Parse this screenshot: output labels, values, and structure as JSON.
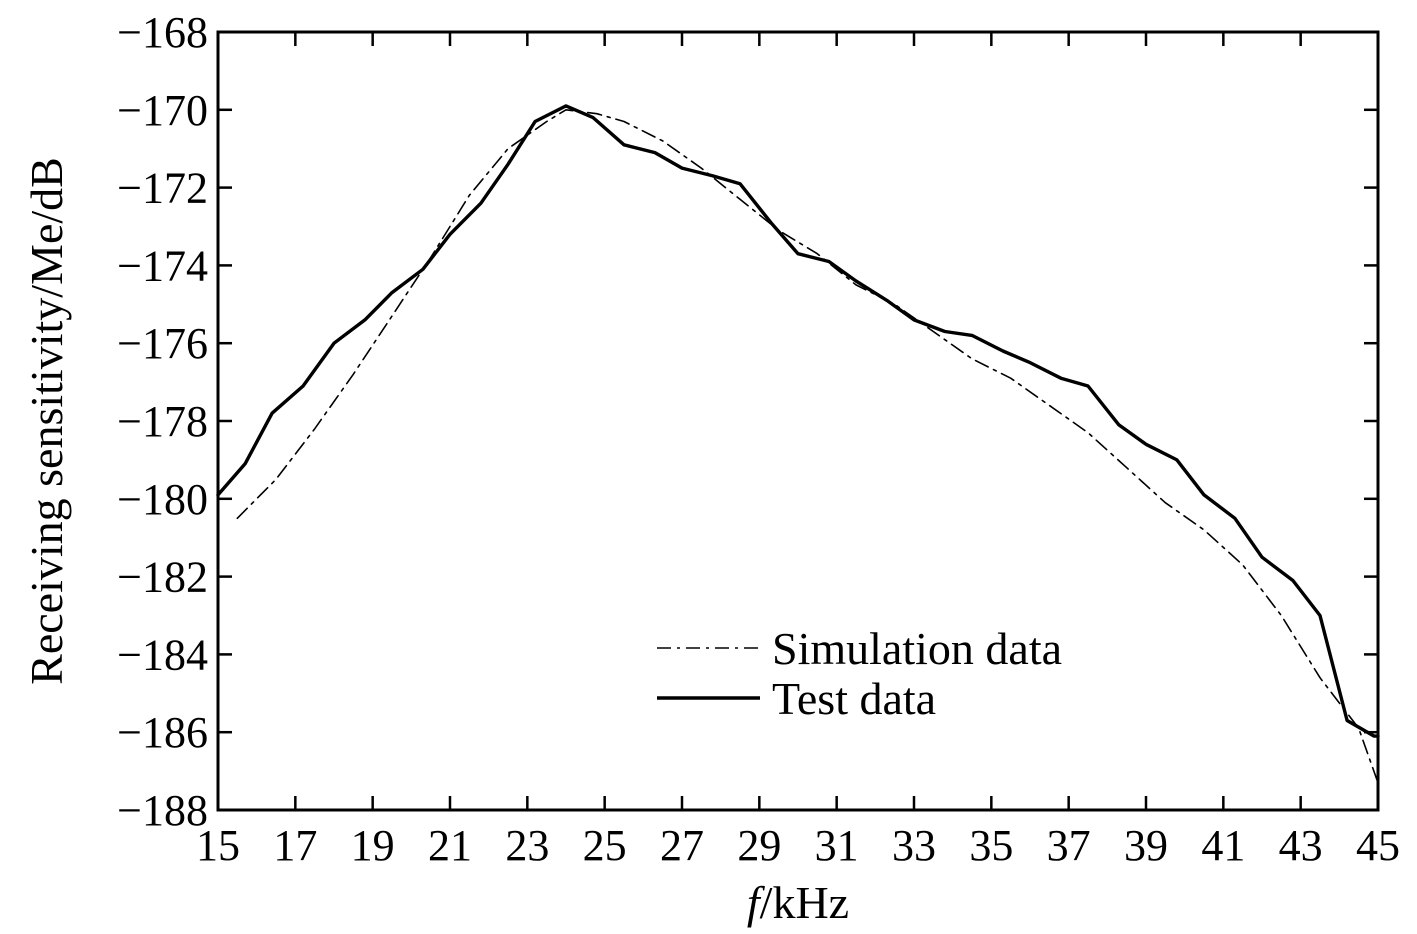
{
  "chart_data": {
    "type": "line",
    "title": "",
    "xlabel_italic": "f",
    "xlabel_rest": "/kHz",
    "ylabel": "Receiving sensitivity/Me/dB",
    "xlim": [
      15,
      45
    ],
    "ylim": [
      -188,
      -168
    ],
    "xticks": [
      15,
      17,
      19,
      21,
      23,
      25,
      27,
      29,
      31,
      33,
      35,
      37,
      39,
      41,
      43,
      45
    ],
    "yticks": [
      -168,
      -170,
      -172,
      -174,
      -176,
      -178,
      -180,
      -182,
      -184,
      -186,
      -188
    ],
    "xtick_labels": [
      "15",
      "17",
      "19",
      "21",
      "23",
      "25",
      "27",
      "29",
      "31",
      "33",
      "35",
      "37",
      "39",
      "41",
      "43",
      "45"
    ],
    "ytick_labels": [
      "−168",
      "−170",
      "−172",
      "−174",
      "−176",
      "−178",
      "−180",
      "−182",
      "−184",
      "−186",
      "−188"
    ],
    "grid": false,
    "legend_position": "lower-center",
    "series": [
      {
        "name": "Simulation data",
        "style": "dash-dot",
        "color": "#000000",
        "x": [
          15.5,
          16.5,
          17.5,
          18.5,
          19.5,
          20.5,
          21.5,
          22.5,
          23.5,
          24.0,
          24.8,
          25.5,
          26.5,
          27.5,
          28.5,
          29.5,
          30.5,
          31.5,
          32.5,
          33.5,
          34.5,
          35.5,
          36.5,
          37.5,
          38.5,
          39.5,
          40.5,
          41.5,
          42.5,
          43.5,
          44.5,
          45.0
        ],
        "y": [
          -180.5,
          -179.5,
          -178.2,
          -176.8,
          -175.3,
          -173.8,
          -172.2,
          -171.0,
          -170.3,
          -170.0,
          -170.1,
          -170.3,
          -170.8,
          -171.5,
          -172.3,
          -173.1,
          -173.7,
          -174.5,
          -175.0,
          -175.7,
          -176.4,
          -176.9,
          -177.6,
          -178.3,
          -179.2,
          -180.1,
          -180.8,
          -181.7,
          -183.0,
          -184.6,
          -185.9,
          -187.3
        ]
      },
      {
        "name": "Test data",
        "style": "solid",
        "color": "#000000",
        "x": [
          15.0,
          15.7,
          16.4,
          17.2,
          18.0,
          18.8,
          19.5,
          20.3,
          21.0,
          21.8,
          22.5,
          23.2,
          24.0,
          24.7,
          25.5,
          26.3,
          27.0,
          27.8,
          28.5,
          29.3,
          30.0,
          30.8,
          31.5,
          32.3,
          33.0,
          33.8,
          34.5,
          35.3,
          36.0,
          36.8,
          37.5,
          38.3,
          39.0,
          39.8,
          40.5,
          41.3,
          42.0,
          42.8,
          43.5,
          44.2,
          44.9,
          45.0
        ],
        "y": [
          -179.9,
          -179.1,
          -177.8,
          -177.1,
          -176.0,
          -175.4,
          -174.7,
          -174.1,
          -173.2,
          -172.4,
          -171.4,
          -170.3,
          -169.9,
          -170.2,
          -170.9,
          -171.1,
          -171.5,
          -171.7,
          -171.9,
          -172.9,
          -173.7,
          -173.9,
          -174.4,
          -174.9,
          -175.4,
          -175.7,
          -175.8,
          -176.2,
          -176.5,
          -176.9,
          -177.1,
          -178.1,
          -178.6,
          -179.0,
          -179.9,
          -180.5,
          -181.5,
          -182.1,
          -183.0,
          -185.7,
          -186.1,
          -186.1
        ]
      }
    ]
  }
}
